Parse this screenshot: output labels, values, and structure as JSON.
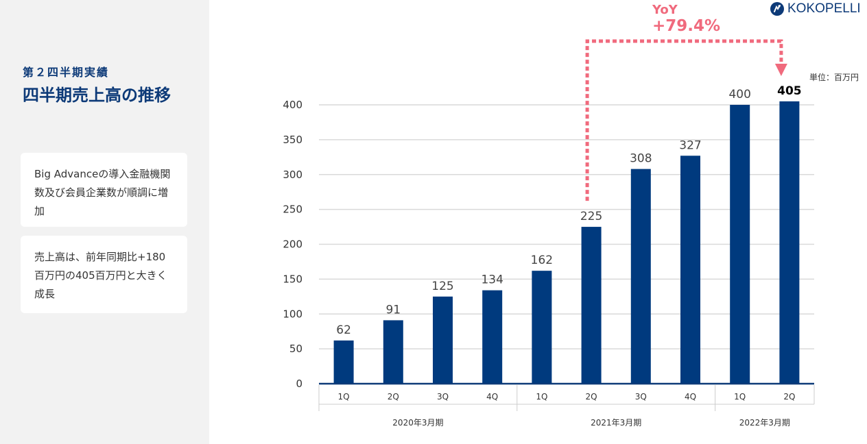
{
  "sidebar": {
    "section_label": "第２四半期実績",
    "title": "四半期売上高の推移",
    "cards": [
      "Big Advanceの導入金融機関数及び会員企業数が順調に増加",
      "売上高は、前年同期比+180百万円の405百万円と大きく成長"
    ]
  },
  "logo": {
    "text": "KOKOPELLI",
    "icon": "kokopelli-logo-icon"
  },
  "annotation": {
    "label": "YoY",
    "value": "+79.4%",
    "color": "#f06a7d"
  },
  "unit_label": "単位：百万円",
  "colors": {
    "bar": "#003a7e",
    "accent": "#f06a7d",
    "title": "#0d3a78"
  },
  "chart_data": {
    "type": "bar",
    "categories": [
      "1Q",
      "2Q",
      "3Q",
      "4Q",
      "1Q",
      "2Q",
      "3Q",
      "4Q",
      "1Q",
      "2Q"
    ],
    "groups": [
      {
        "label": "2020年3月期",
        "count": 4
      },
      {
        "label": "2021年3月期",
        "count": 4
      },
      {
        "label": "2022年3月期",
        "count": 2
      }
    ],
    "values": [
      62,
      91,
      125,
      134,
      162,
      225,
      308,
      327,
      400,
      405
    ],
    "highlight_index": 9,
    "ylim": [
      0,
      400
    ],
    "yticks": [
      0,
      50,
      100,
      150,
      200,
      250,
      300,
      350,
      400
    ],
    "grid": true
  }
}
